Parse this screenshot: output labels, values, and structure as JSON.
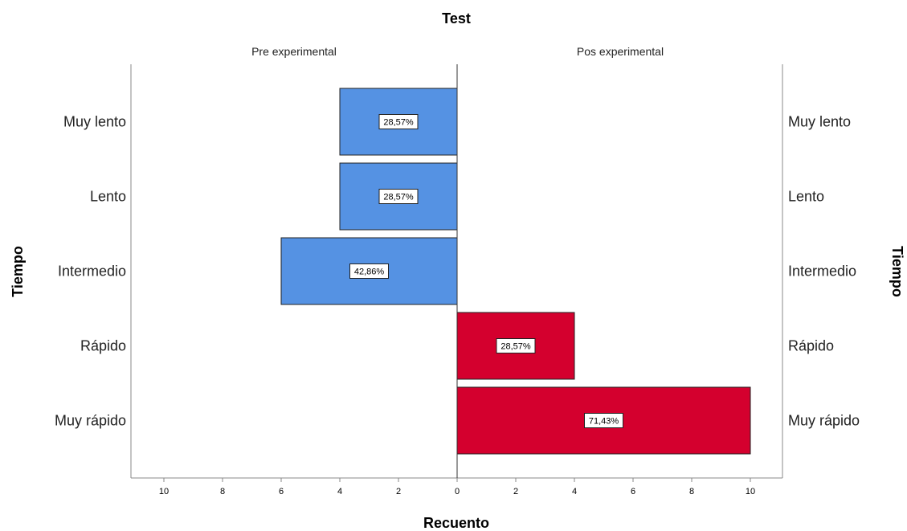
{
  "chart_data": {
    "type": "bar",
    "orientation": "horizontal",
    "layout": "population-pyramid",
    "title": "Test",
    "xlabel": "Recuento",
    "ylabel": "Tiempo",
    "categories": [
      "Muy lento",
      "Lento",
      "Intermedio",
      "Rápido",
      "Muy rápido"
    ],
    "panels": [
      {
        "name": "Pre experimental",
        "side": "left",
        "color": "#5592E3",
        "values": [
          4,
          4,
          6,
          0,
          0
        ],
        "labels": [
          "28,57%",
          "28,57%",
          "42,86%",
          "",
          ""
        ]
      },
      {
        "name": "Pos experimental",
        "side": "right",
        "color": "#D4002E",
        "values": [
          0,
          0,
          0,
          4,
          10
        ],
        "labels": [
          "",
          "",
          "",
          "28,57%",
          "71,43%"
        ]
      }
    ],
    "xlim": [
      0,
      11
    ],
    "xticks": [
      0,
      2,
      4,
      6,
      8,
      10
    ],
    "grid": false,
    "legend": "none"
  }
}
